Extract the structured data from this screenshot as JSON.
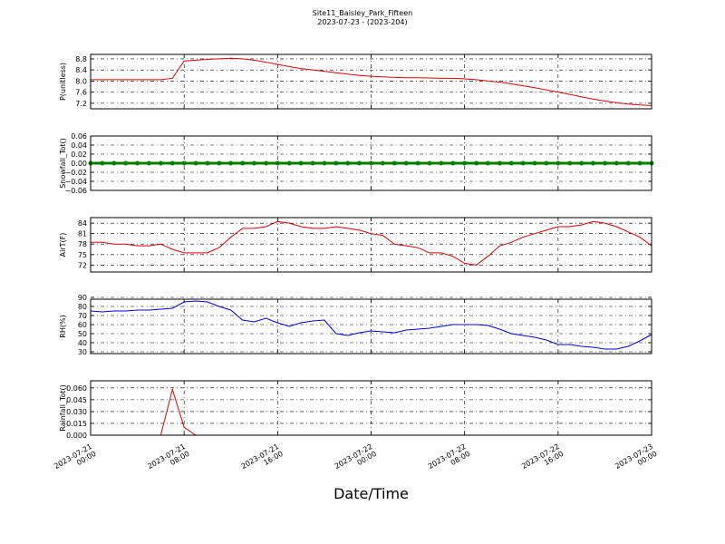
{
  "title": "Site11_Baisley_Park_Fifteen",
  "subtitle": "2023-07-23 - (2023-204)",
  "chart_data": [
    {
      "type": "line",
      "ylabel": "P(unitless)",
      "color": "#e00000",
      "grid": true,
      "x": [
        "2023-07-21 00:00",
        "2023-07-21 01:00",
        "2023-07-21 02:00",
        "2023-07-21 03:00",
        "2023-07-21 04:00",
        "2023-07-21 05:00",
        "2023-07-21 06:00",
        "2023-07-21 07:00",
        "2023-07-21 08:00",
        "2023-07-21 09:00",
        "2023-07-21 10:00",
        "2023-07-21 11:00",
        "2023-07-21 12:00",
        "2023-07-21 13:00",
        "2023-07-21 14:00",
        "2023-07-21 15:00",
        "2023-07-21 16:00",
        "2023-07-21 17:00",
        "2023-07-21 18:00",
        "2023-07-21 19:00",
        "2023-07-21 20:00",
        "2023-07-21 21:00",
        "2023-07-21 22:00",
        "2023-07-21 23:00",
        "2023-07-22 00:00",
        "2023-07-22 01:00",
        "2023-07-22 02:00",
        "2023-07-22 03:00",
        "2023-07-22 04:00",
        "2023-07-22 05:00",
        "2023-07-22 06:00",
        "2023-07-22 07:00",
        "2023-07-22 08:00",
        "2023-07-22 09:00",
        "2023-07-22 10:00",
        "2023-07-22 11:00",
        "2023-07-22 12:00",
        "2023-07-22 13:00",
        "2023-07-22 14:00",
        "2023-07-22 15:00",
        "2023-07-22 16:00",
        "2023-07-22 17:00",
        "2023-07-22 18:00",
        "2023-07-22 19:00",
        "2023-07-22 20:00",
        "2023-07-22 21:00",
        "2023-07-22 22:00",
        "2023-07-22 23:00",
        "2023-07-23 00:00"
      ],
      "values": [
        8.05,
        8.05,
        8.05,
        8.05,
        8.05,
        8.05,
        8.05,
        8.1,
        8.72,
        8.75,
        8.78,
        8.8,
        8.82,
        8.8,
        8.75,
        8.68,
        8.6,
        8.52,
        8.45,
        8.4,
        8.35,
        8.3,
        8.25,
        8.2,
        8.17,
        8.15,
        8.13,
        8.12,
        8.12,
        8.11,
        8.1,
        8.1,
        8.08,
        8.05,
        8.0,
        7.96,
        7.9,
        7.83,
        7.76,
        7.68,
        7.6,
        7.52,
        7.43,
        7.35,
        7.28,
        7.22,
        7.17,
        7.14,
        7.12
      ],
      "xlim": [
        "2023-07-21 00:00",
        "2023-07-23 00:00"
      ],
      "xticks": [
        "2023-07-21 00:00",
        "2023-07-21 08:00",
        "2023-07-21 16:00",
        "2023-07-22 00:00",
        "2023-07-22 08:00",
        "2023-07-22 16:00",
        "2023-07-23 00:00"
      ],
      "ylim": [
        7.0,
        8.96
      ],
      "yticks": [
        7.2,
        7.6,
        {
          "value": 8,
          "label": "8.0"
        },
        8.4,
        8.8
      ]
    },
    {
      "type": "line",
      "ylabel": "Snowfall_Tot()",
      "color": "#008000",
      "marker": "o",
      "grid": true,
      "x": [
        "2023-07-21 00:00",
        "2023-07-21 01:00",
        "2023-07-21 02:00",
        "2023-07-21 03:00",
        "2023-07-21 04:00",
        "2023-07-21 05:00",
        "2023-07-21 06:00",
        "2023-07-21 07:00",
        "2023-07-21 08:00",
        "2023-07-21 09:00",
        "2023-07-21 10:00",
        "2023-07-21 11:00",
        "2023-07-21 12:00",
        "2023-07-21 13:00",
        "2023-07-21 14:00",
        "2023-07-21 15:00",
        "2023-07-21 16:00",
        "2023-07-21 17:00",
        "2023-07-21 18:00",
        "2023-07-21 19:00",
        "2023-07-21 20:00",
        "2023-07-21 21:00",
        "2023-07-21 22:00",
        "2023-07-21 23:00",
        "2023-07-22 00:00",
        "2023-07-22 01:00",
        "2023-07-22 02:00",
        "2023-07-22 03:00",
        "2023-07-22 04:00",
        "2023-07-22 05:00",
        "2023-07-22 06:00",
        "2023-07-22 07:00",
        "2023-07-22 08:00",
        "2023-07-22 09:00",
        "2023-07-22 10:00",
        "2023-07-22 11:00",
        "2023-07-22 12:00",
        "2023-07-22 13:00",
        "2023-07-22 14:00",
        "2023-07-22 15:00",
        "2023-07-22 16:00",
        "2023-07-22 17:00",
        "2023-07-22 18:00",
        "2023-07-22 19:00",
        "2023-07-22 20:00",
        "2023-07-22 21:00",
        "2023-07-22 22:00",
        "2023-07-22 23:00",
        "2023-07-23 00:00"
      ],
      "values": [
        0,
        0,
        0,
        0,
        0,
        0,
        0,
        0,
        0,
        0,
        0,
        0,
        0,
        0,
        0,
        0,
        0,
        0,
        0,
        0,
        0,
        0,
        0,
        0,
        0,
        0,
        0,
        0,
        0,
        0,
        0,
        0,
        0,
        0,
        0,
        0,
        0,
        0,
        0,
        0,
        0,
        0,
        0,
        0,
        0,
        0,
        0,
        0,
        0
      ],
      "xlim": [
        "2023-07-21 00:00",
        "2023-07-23 00:00"
      ],
      "xticks": [
        "2023-07-21 00:00",
        "2023-07-21 08:00",
        "2023-07-21 16:00",
        "2023-07-22 00:00",
        "2023-07-22 08:00",
        "2023-07-22 16:00",
        "2023-07-23 00:00"
      ],
      "ylim": [
        -0.06,
        0.06
      ],
      "yticks": [
        {
          "value": -0.06,
          "label": "−0.06"
        },
        {
          "value": -0.04,
          "label": "−0.04"
        },
        {
          "value": -0.02,
          "label": "−0.02"
        },
        {
          "value": 0,
          "label": "0.00"
        },
        0.02,
        0.04,
        0.06
      ]
    },
    {
      "type": "line",
      "ylabel": "AirT(F)",
      "color": "#e00000",
      "grid": true,
      "x": [
        "2023-07-21 00:00",
        "2023-07-21 01:00",
        "2023-07-21 02:00",
        "2023-07-21 03:00",
        "2023-07-21 04:00",
        "2023-07-21 05:00",
        "2023-07-21 06:00",
        "2023-07-21 07:00",
        "2023-07-21 08:00",
        "2023-07-21 09:00",
        "2023-07-21 10:00",
        "2023-07-21 11:00",
        "2023-07-21 12:00",
        "2023-07-21 13:00",
        "2023-07-21 14:00",
        "2023-07-21 15:00",
        "2023-07-21 16:00",
        "2023-07-21 17:00",
        "2023-07-21 18:00",
        "2023-07-21 19:00",
        "2023-07-21 20:00",
        "2023-07-21 21:00",
        "2023-07-21 22:00",
        "2023-07-21 23:00",
        "2023-07-22 00:00",
        "2023-07-22 01:00",
        "2023-07-22 02:00",
        "2023-07-22 03:00",
        "2023-07-22 04:00",
        "2023-07-22 05:00",
        "2023-07-22 06:00",
        "2023-07-22 07:00",
        "2023-07-22 08:00",
        "2023-07-22 09:00",
        "2023-07-22 10:00",
        "2023-07-22 11:00",
        "2023-07-22 12:00",
        "2023-07-22 13:00",
        "2023-07-22 14:00",
        "2023-07-22 15:00",
        "2023-07-22 16:00",
        "2023-07-22 17:00",
        "2023-07-22 18:00",
        "2023-07-22 19:00",
        "2023-07-22 20:00",
        "2023-07-22 21:00",
        "2023-07-22 22:00",
        "2023-07-22 23:00",
        "2023-07-23 00:00"
      ],
      "values": [
        78.5,
        78.5,
        78,
        78,
        77.5,
        77.5,
        78,
        76.5,
        75.5,
        75.5,
        75.5,
        77,
        80,
        82.5,
        82.5,
        83,
        84.5,
        84,
        83,
        82.5,
        82.5,
        83,
        82.5,
        82,
        81,
        80.5,
        78,
        77.5,
        77,
        75.5,
        75.5,
        74.5,
        72.5,
        72,
        74.5,
        77.5,
        78.5,
        80,
        81,
        82,
        83,
        83,
        83.5,
        84.5,
        84,
        83,
        81.5,
        80,
        77.5
      ],
      "xlim": [
        "2023-07-21 00:00",
        "2023-07-23 00:00"
      ],
      "xticks": [
        "2023-07-21 00:00",
        "2023-07-21 08:00",
        "2023-07-21 16:00",
        "2023-07-22 00:00",
        "2023-07-22 08:00",
        "2023-07-22 16:00",
        "2023-07-23 00:00"
      ],
      "ylim": [
        70,
        85.6
      ],
      "yticks": [
        72,
        75,
        78,
        81,
        84
      ]
    },
    {
      "type": "line",
      "ylabel": "RH(%)",
      "color": "#0000e0",
      "grid": true,
      "x": [
        "2023-07-21 00:00",
        "2023-07-21 01:00",
        "2023-07-21 02:00",
        "2023-07-21 03:00",
        "2023-07-21 04:00",
        "2023-07-21 05:00",
        "2023-07-21 06:00",
        "2023-07-21 07:00",
        "2023-07-21 08:00",
        "2023-07-21 09:00",
        "2023-07-21 10:00",
        "2023-07-21 11:00",
        "2023-07-21 12:00",
        "2023-07-21 13:00",
        "2023-07-21 14:00",
        "2023-07-21 15:00",
        "2023-07-21 16:00",
        "2023-07-21 17:00",
        "2023-07-21 18:00",
        "2023-07-21 19:00",
        "2023-07-21 20:00",
        "2023-07-21 21:00",
        "2023-07-21 22:00",
        "2023-07-21 23:00",
        "2023-07-22 00:00",
        "2023-07-22 01:00",
        "2023-07-22 02:00",
        "2023-07-22 03:00",
        "2023-07-22 04:00",
        "2023-07-22 05:00",
        "2023-07-22 06:00",
        "2023-07-22 07:00",
        "2023-07-22 08:00",
        "2023-07-22 09:00",
        "2023-07-22 10:00",
        "2023-07-22 11:00",
        "2023-07-22 12:00",
        "2023-07-22 13:00",
        "2023-07-22 14:00",
        "2023-07-22 15:00",
        "2023-07-22 16:00",
        "2023-07-22 17:00",
        "2023-07-22 18:00",
        "2023-07-22 19:00",
        "2023-07-22 20:00",
        "2023-07-22 21:00",
        "2023-07-22 22:00",
        "2023-07-22 23:00",
        "2023-07-23 00:00"
      ],
      "values": [
        75,
        74,
        75,
        75,
        76,
        76,
        77,
        78,
        85,
        86,
        85,
        80,
        76,
        65,
        63,
        67,
        62,
        58,
        62,
        64,
        65,
        50,
        48,
        51,
        53,
        52,
        51,
        54,
        55,
        56,
        58,
        60,
        60,
        60,
        59,
        55,
        50,
        48,
        46,
        43,
        38,
        38,
        36,
        35,
        33,
        33,
        36,
        42,
        49
      ],
      "xlim": [
        "2023-07-21 00:00",
        "2023-07-23 00:00"
      ],
      "xticks": [
        "2023-07-21 00:00",
        "2023-07-21 08:00",
        "2023-07-21 16:00",
        "2023-07-22 00:00",
        "2023-07-22 08:00",
        "2023-07-22 16:00",
        "2023-07-23 00:00"
      ],
      "ylim": [
        28,
        88
      ],
      "yticks": [
        30,
        40,
        50,
        60,
        70,
        80,
        90
      ]
    },
    {
      "type": "line",
      "ylabel": "Rainfall_Tot()",
      "xlabel": "Date/Time",
      "color": "#e00000",
      "grid": true,
      "x": [
        "2023-07-21 00:00",
        "2023-07-21 01:00",
        "2023-07-21 02:00",
        "2023-07-21 03:00",
        "2023-07-21 04:00",
        "2023-07-21 05:00",
        "2023-07-21 06:00",
        "2023-07-21 07:00",
        "2023-07-21 08:00",
        "2023-07-21 09:00",
        "2023-07-21 10:00",
        "2023-07-21 11:00",
        "2023-07-21 12:00",
        "2023-07-21 13:00",
        "2023-07-21 14:00",
        "2023-07-21 15:00",
        "2023-07-21 16:00",
        "2023-07-21 17:00",
        "2023-07-21 18:00",
        "2023-07-21 19:00",
        "2023-07-21 20:00",
        "2023-07-21 21:00",
        "2023-07-21 22:00",
        "2023-07-21 23:00",
        "2023-07-22 00:00",
        "2023-07-22 01:00",
        "2023-07-22 02:00",
        "2023-07-22 03:00",
        "2023-07-22 04:00",
        "2023-07-22 05:00",
        "2023-07-22 06:00",
        "2023-07-22 07:00",
        "2023-07-22 08:00",
        "2023-07-22 09:00",
        "2023-07-22 10:00",
        "2023-07-22 11:00",
        "2023-07-22 12:00",
        "2023-07-22 13:00",
        "2023-07-22 14:00",
        "2023-07-22 15:00",
        "2023-07-22 16:00",
        "2023-07-22 17:00",
        "2023-07-22 18:00",
        "2023-07-22 19:00",
        "2023-07-22 20:00",
        "2023-07-22 21:00",
        "2023-07-22 22:00",
        "2023-07-22 23:00",
        "2023-07-23 00:00"
      ],
      "values": [
        0,
        0,
        0,
        0,
        0,
        0,
        0,
        0.058,
        0.01,
        0,
        0,
        0,
        0,
        0,
        0,
        0,
        0,
        0,
        0,
        0,
        0,
        0,
        0,
        0,
        0,
        0,
        0,
        0,
        0,
        0,
        0,
        0,
        0,
        0,
        0,
        0,
        0,
        0,
        0,
        0,
        0,
        0,
        0,
        0,
        0,
        0,
        0,
        0,
        0
      ],
      "xlim": [
        "2023-07-21 00:00",
        "2023-07-23 00:00"
      ],
      "xticks": [
        "2023-07-21 00:00",
        "2023-07-21 08:00",
        "2023-07-21 16:00",
        "2023-07-22 00:00",
        "2023-07-22 08:00",
        "2023-07-22 16:00",
        "2023-07-23 00:00"
      ],
      "ylim": [
        0,
        0.069
      ],
      "yticks": [
        {
          "value": 0,
          "label": "0.000"
        },
        0.015,
        {
          "value": 0.03,
          "label": "0.030"
        },
        0.045,
        {
          "value": 0.06,
          "label": "0.060"
        }
      ]
    }
  ]
}
